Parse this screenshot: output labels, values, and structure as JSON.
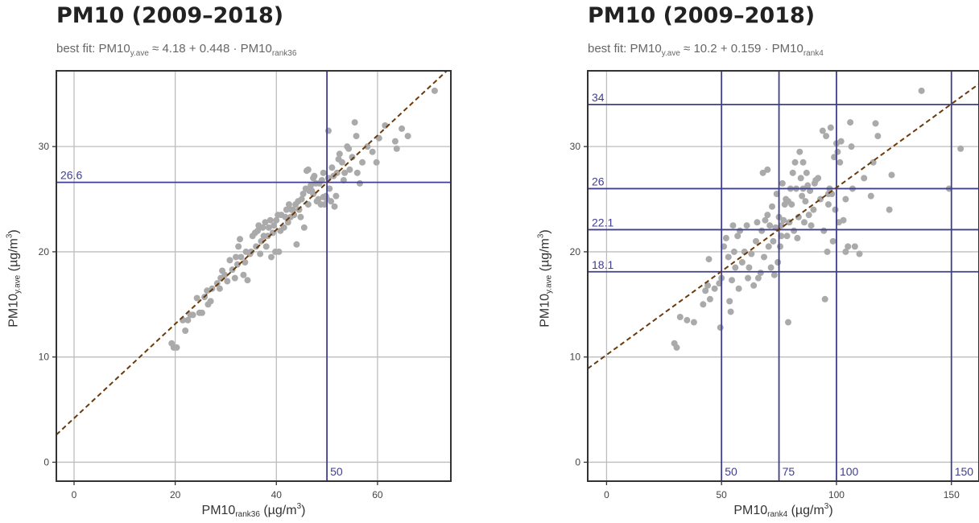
{
  "chart_data": [
    {
      "type": "scatter",
      "title": "PM10 (2009–2018)",
      "subtitle": {
        "prefix": "best fit: PM10",
        "y_sub": "y.ave",
        "mid": " ≈ 4.18 + 0.448 · PM10",
        "x_sub": "rank36"
      },
      "xlabel": {
        "main": "PM10",
        "sub": "rank36",
        "unit": " (µg/m",
        "sup": "3",
        "close": ")"
      },
      "ylabel": {
        "main": "PM10",
        "sub": "y.ave",
        "unit": " (µg/m",
        "sup": "3",
        "close": ")"
      },
      "xlim": [
        -3.5,
        74.5
      ],
      "ylim": [
        -1.8,
        37.2
      ],
      "x_ticks": [
        0,
        20,
        40,
        60
      ],
      "y_ticks": [
        0,
        10,
        20,
        30
      ],
      "fit": {
        "intercept": 4.18,
        "slope": 0.448
      },
      "vlines": [
        {
          "x": 50,
          "label": "50"
        }
      ],
      "hlines": [
        {
          "y": 26.6,
          "label": "26.6"
        }
      ],
      "colors": {
        "points": "#aaaaaa",
        "fit": "#6b3a0a",
        "refline": "#3f3f8f",
        "grid": "#bdbdbd",
        "frame": "#333333"
      },
      "points": [
        [
          19.3,
          11.3
        ],
        [
          19.7,
          10.9
        ],
        [
          20.3,
          10.9
        ],
        [
          21.5,
          13.5
        ],
        [
          22.0,
          12.5
        ],
        [
          22.5,
          13.5
        ],
        [
          23.0,
          14.0
        ],
        [
          23.5,
          14.0
        ],
        [
          24.3,
          15.6
        ],
        [
          24.8,
          14.2
        ],
        [
          25.3,
          14.2
        ],
        [
          25.8,
          15.7
        ],
        [
          26.3,
          16.3
        ],
        [
          26.5,
          15.0
        ],
        [
          27.0,
          15.3
        ],
        [
          27.3,
          16.5
        ],
        [
          28.3,
          17.0
        ],
        [
          28.8,
          16.5
        ],
        [
          29.0,
          17.5
        ],
        [
          29.3,
          18.2
        ],
        [
          29.8,
          17.8
        ],
        [
          30.3,
          17.2
        ],
        [
          30.8,
          19.2
        ],
        [
          31.3,
          18.3
        ],
        [
          31.8,
          17.5
        ],
        [
          32.0,
          19.5
        ],
        [
          32.3,
          18.8
        ],
        [
          32.5,
          20.5
        ],
        [
          32.8,
          21.2
        ],
        [
          33.0,
          19.5
        ],
        [
          33.5,
          17.8
        ],
        [
          33.8,
          19.0
        ],
        [
          34.0,
          20.0
        ],
        [
          34.3,
          17.3
        ],
        [
          34.8,
          19.8
        ],
        [
          35.0,
          20.0
        ],
        [
          35.3,
          21.5
        ],
        [
          35.8,
          21.8
        ],
        [
          36.0,
          20.5
        ],
        [
          36.3,
          22.0
        ],
        [
          36.5,
          22.5
        ],
        [
          36.8,
          19.8
        ],
        [
          37.0,
          21.0
        ],
        [
          37.3,
          22.3
        ],
        [
          37.5,
          21.5
        ],
        [
          37.8,
          22.8
        ],
        [
          38.0,
          20.5
        ],
        [
          38.3,
          21.5
        ],
        [
          38.5,
          22.3
        ],
        [
          38.8,
          23.0
        ],
        [
          39.0,
          19.5
        ],
        [
          39.3,
          21.8
        ],
        [
          39.5,
          22.5
        ],
        [
          39.8,
          20.0
        ],
        [
          40.0,
          23.0
        ],
        [
          40.3,
          23.5
        ],
        [
          40.5,
          20.0
        ],
        [
          40.8,
          22.0
        ],
        [
          41.0,
          23.5
        ],
        [
          41.5,
          22.3
        ],
        [
          41.8,
          23.3
        ],
        [
          42.0,
          24.0
        ],
        [
          42.3,
          22.8
        ],
        [
          42.5,
          24.5
        ],
        [
          42.8,
          23.3
        ],
        [
          43.0,
          24.0
        ],
        [
          43.3,
          24.0
        ],
        [
          43.5,
          23.5
        ],
        [
          43.8,
          24.5
        ],
        [
          44.0,
          20.7
        ],
        [
          44.3,
          24.8
        ],
        [
          44.5,
          24.0
        ],
        [
          44.8,
          23.3
        ],
        [
          45.0,
          25.0
        ],
        [
          45.3,
          25.5
        ],
        [
          45.5,
          22.3
        ],
        [
          45.8,
          26.0
        ],
        [
          46.0,
          27.7
        ],
        [
          46.3,
          24.5
        ],
        [
          46.5,
          25.8
        ],
        [
          46.8,
          26.3
        ],
        [
          47.0,
          25.8
        ],
        [
          47.3,
          25.5
        ],
        [
          47.5,
          27.2
        ],
        [
          47.8,
          26.5
        ],
        [
          48.0,
          24.8
        ],
        [
          48.3,
          25.0
        ],
        [
          48.5,
          26.5
        ],
        [
          48.8,
          24.5
        ],
        [
          49.0,
          26.8
        ],
        [
          49.3,
          25.2
        ],
        [
          49.5,
          24.5
        ],
        [
          49.8,
          25.3
        ],
        [
          50.0,
          25.0
        ],
        [
          50.3,
          27.0
        ],
        [
          50.5,
          26.0
        ],
        [
          50.8,
          24.8
        ],
        [
          51.0,
          28.0
        ],
        [
          51.3,
          27.2
        ],
        [
          51.5,
          24.3
        ],
        [
          52.0,
          27.5
        ],
        [
          52.5,
          29.3
        ],
        [
          53.0,
          28.5
        ],
        [
          53.5,
          27.5
        ],
        [
          54.0,
          30.0
        ],
        [
          54.5,
          27.8
        ],
        [
          55.0,
          29.0
        ],
        [
          55.5,
          32.3
        ],
        [
          55.8,
          31.0
        ],
        [
          56.0,
          27.5
        ],
        [
          56.5,
          26.5
        ],
        [
          57.0,
          28.5
        ],
        [
          58.0,
          30.0
        ],
        [
          59.0,
          29.5
        ],
        [
          59.8,
          28.5
        ],
        [
          60.3,
          30.8
        ],
        [
          61.5,
          32.0
        ],
        [
          63.5,
          30.5
        ],
        [
          63.8,
          29.8
        ],
        [
          64.8,
          31.7
        ],
        [
          66.0,
          31.0
        ],
        [
          71.3,
          35.3
        ],
        [
          50.3,
          31.5
        ],
        [
          54.3,
          29.8
        ],
        [
          52.3,
          28.8
        ],
        [
          53.3,
          26.8
        ],
        [
          51.8,
          25.3
        ],
        [
          49.3,
          27.5
        ],
        [
          47.3,
          27.0
        ],
        [
          46.3,
          27.8
        ]
      ]
    },
    {
      "type": "scatter",
      "title": "PM10 (2009–2018)",
      "subtitle": {
        "prefix": "best fit: PM10",
        "y_sub": "y.ave",
        "mid": " ≈ 10.2 + 0.159 · PM10",
        "x_sub": "rank4"
      },
      "xlabel": {
        "main": "PM10",
        "sub": "rank4",
        "unit": " (µg/m",
        "sup": "3",
        "close": ")"
      },
      "ylabel": {
        "main": "PM10",
        "sub": "y.ave",
        "unit": " (µg/m",
        "sup": "3",
        "close": ")"
      },
      "xlim": [
        -8.2,
        162
      ],
      "ylim": [
        -1.8,
        37.2
      ],
      "x_ticks": [
        0,
        50,
        100,
        150
      ],
      "y_ticks": [
        0,
        10,
        20,
        30
      ],
      "fit": {
        "intercept": 10.2,
        "slope": 0.159
      },
      "vlines": [
        {
          "x": 50,
          "label": "50"
        },
        {
          "x": 75,
          "label": "75"
        },
        {
          "x": 100,
          "label": "100"
        },
        {
          "x": 150,
          "label": "150"
        }
      ],
      "hlines": [
        {
          "y": 34,
          "label": "34"
        },
        {
          "y": 26,
          "label": "26"
        },
        {
          "y": 22.1,
          "label": "22.1"
        },
        {
          "y": 18.1,
          "label": "18.1"
        }
      ],
      "colors": {
        "points": "#aaaaaa",
        "fit": "#6b3a0a",
        "refline": "#3f3f8f",
        "grid": "#bdbdbd",
        "frame": "#333333"
      },
      "points": [
        [
          29.5,
          11.3
        ],
        [
          30.5,
          10.9
        ],
        [
          32.0,
          13.8
        ],
        [
          35.0,
          13.5
        ],
        [
          38.0,
          13.3
        ],
        [
          42.0,
          15.0
        ],
        [
          43.0,
          16.3
        ],
        [
          44.0,
          16.8
        ],
        [
          45.0,
          15.5
        ],
        [
          44.5,
          19.3
        ],
        [
          47.0,
          16.5
        ],
        [
          49.0,
          17.0
        ],
        [
          49.5,
          12.8
        ],
        [
          50.0,
          17.5
        ],
        [
          51.0,
          20.5
        ],
        [
          52.0,
          21.3
        ],
        [
          53.0,
          19.5
        ],
        [
          53.5,
          15.3
        ],
        [
          54.0,
          14.3
        ],
        [
          54.5,
          17.3
        ],
        [
          55.0,
          22.5
        ],
        [
          55.5,
          20.0
        ],
        [
          56.0,
          18.5
        ],
        [
          57.0,
          21.5
        ],
        [
          57.5,
          16.5
        ],
        [
          58.0,
          22.0
        ],
        [
          59.0,
          19.0
        ],
        [
          60.0,
          20.0
        ],
        [
          61.0,
          22.5
        ],
        [
          61.5,
          17.5
        ],
        [
          62.0,
          18.5
        ],
        [
          63.0,
          19.8
        ],
        [
          64.0,
          16.8
        ],
        [
          65.0,
          21.0
        ],
        [
          65.5,
          22.8
        ],
        [
          66.0,
          17.5
        ],
        [
          67.0,
          18.0
        ],
        [
          67.5,
          22.0
        ],
        [
          68.0,
          27.5
        ],
        [
          68.5,
          19.5
        ],
        [
          69.0,
          23.0
        ],
        [
          70.0,
          27.8
        ],
        [
          70.5,
          20.5
        ],
        [
          71.0,
          22.5
        ],
        [
          71.5,
          18.5
        ],
        [
          72.0,
          24.3
        ],
        [
          72.5,
          21.0
        ],
        [
          73.0,
          17.8
        ],
        [
          73.5,
          22.3
        ],
        [
          74.0,
          25.5
        ],
        [
          74.5,
          19.0
        ],
        [
          75.0,
          23.3
        ],
        [
          75.5,
          20.5
        ],
        [
          76.0,
          22.5
        ],
        [
          76.5,
          26.5
        ],
        [
          77.0,
          23.0
        ],
        [
          77.5,
          24.5
        ],
        [
          78.0,
          25.0
        ],
        [
          78.5,
          21.5
        ],
        [
          79.0,
          13.3
        ],
        [
          79.5,
          22.8
        ],
        [
          80.0,
          26.0
        ],
        [
          80.5,
          24.5
        ],
        [
          81.0,
          27.5
        ],
        [
          81.5,
          22.0
        ],
        [
          82.0,
          28.5
        ],
        [
          82.5,
          26.0
        ],
        [
          83.0,
          21.3
        ],
        [
          83.5,
          23.3
        ],
        [
          84.0,
          29.5
        ],
        [
          84.5,
          27.0
        ],
        [
          85.0,
          25.3
        ],
        [
          85.5,
          28.5
        ],
        [
          86.0,
          22.8
        ],
        [
          86.5,
          24.8
        ],
        [
          87.0,
          27.5
        ],
        [
          87.5,
          26.3
        ],
        [
          88.0,
          23.5
        ],
        [
          88.5,
          25.8
        ],
        [
          89.0,
          22.5
        ],
        [
          90.0,
          24.0
        ],
        [
          91.0,
          26.8
        ],
        [
          92.0,
          27.0
        ],
        [
          93.0,
          25.0
        ],
        [
          94.0,
          31.5
        ],
        [
          94.5,
          22.0
        ],
        [
          95.0,
          15.5
        ],
        [
          95.5,
          31.0
        ],
        [
          96.0,
          20.0
        ],
        [
          96.5,
          24.5
        ],
        [
          97.0,
          26.0
        ],
        [
          97.5,
          31.8
        ],
        [
          98.0,
          25.5
        ],
        [
          98.5,
          21.0
        ],
        [
          99.0,
          29.0
        ],
        [
          99.5,
          24.0
        ],
        [
          100.0,
          30.3
        ],
        [
          100.5,
          29.5
        ],
        [
          101.0,
          22.8
        ],
        [
          101.5,
          28.5
        ],
        [
          102.0,
          30.5
        ],
        [
          103.0,
          23.0
        ],
        [
          104.0,
          25.0
        ],
        [
          105.0,
          20.5
        ],
        [
          106.0,
          32.3
        ],
        [
          106.5,
          30.0
        ],
        [
          107.0,
          26.0
        ],
        [
          108.0,
          20.5
        ],
        [
          110.0,
          19.8
        ],
        [
          112.0,
          27.0
        ],
        [
          115.0,
          25.3
        ],
        [
          116.0,
          28.5
        ],
        [
          117.0,
          32.2
        ],
        [
          118.0,
          31.0
        ],
        [
          123.0,
          24.0
        ],
        [
          124.0,
          27.3
        ],
        [
          137.0,
          35.3
        ],
        [
          149.0,
          26.0
        ],
        [
          154.0,
          29.8
        ],
        [
          104.0,
          20.0
        ],
        [
          96.5,
          25.5
        ],
        [
          90.5,
          26.5
        ],
        [
          85.5,
          26.0
        ],
        [
          79.0,
          24.8
        ],
        [
          76.0,
          21.5
        ],
        [
          70.0,
          23.5
        ]
      ]
    }
  ]
}
